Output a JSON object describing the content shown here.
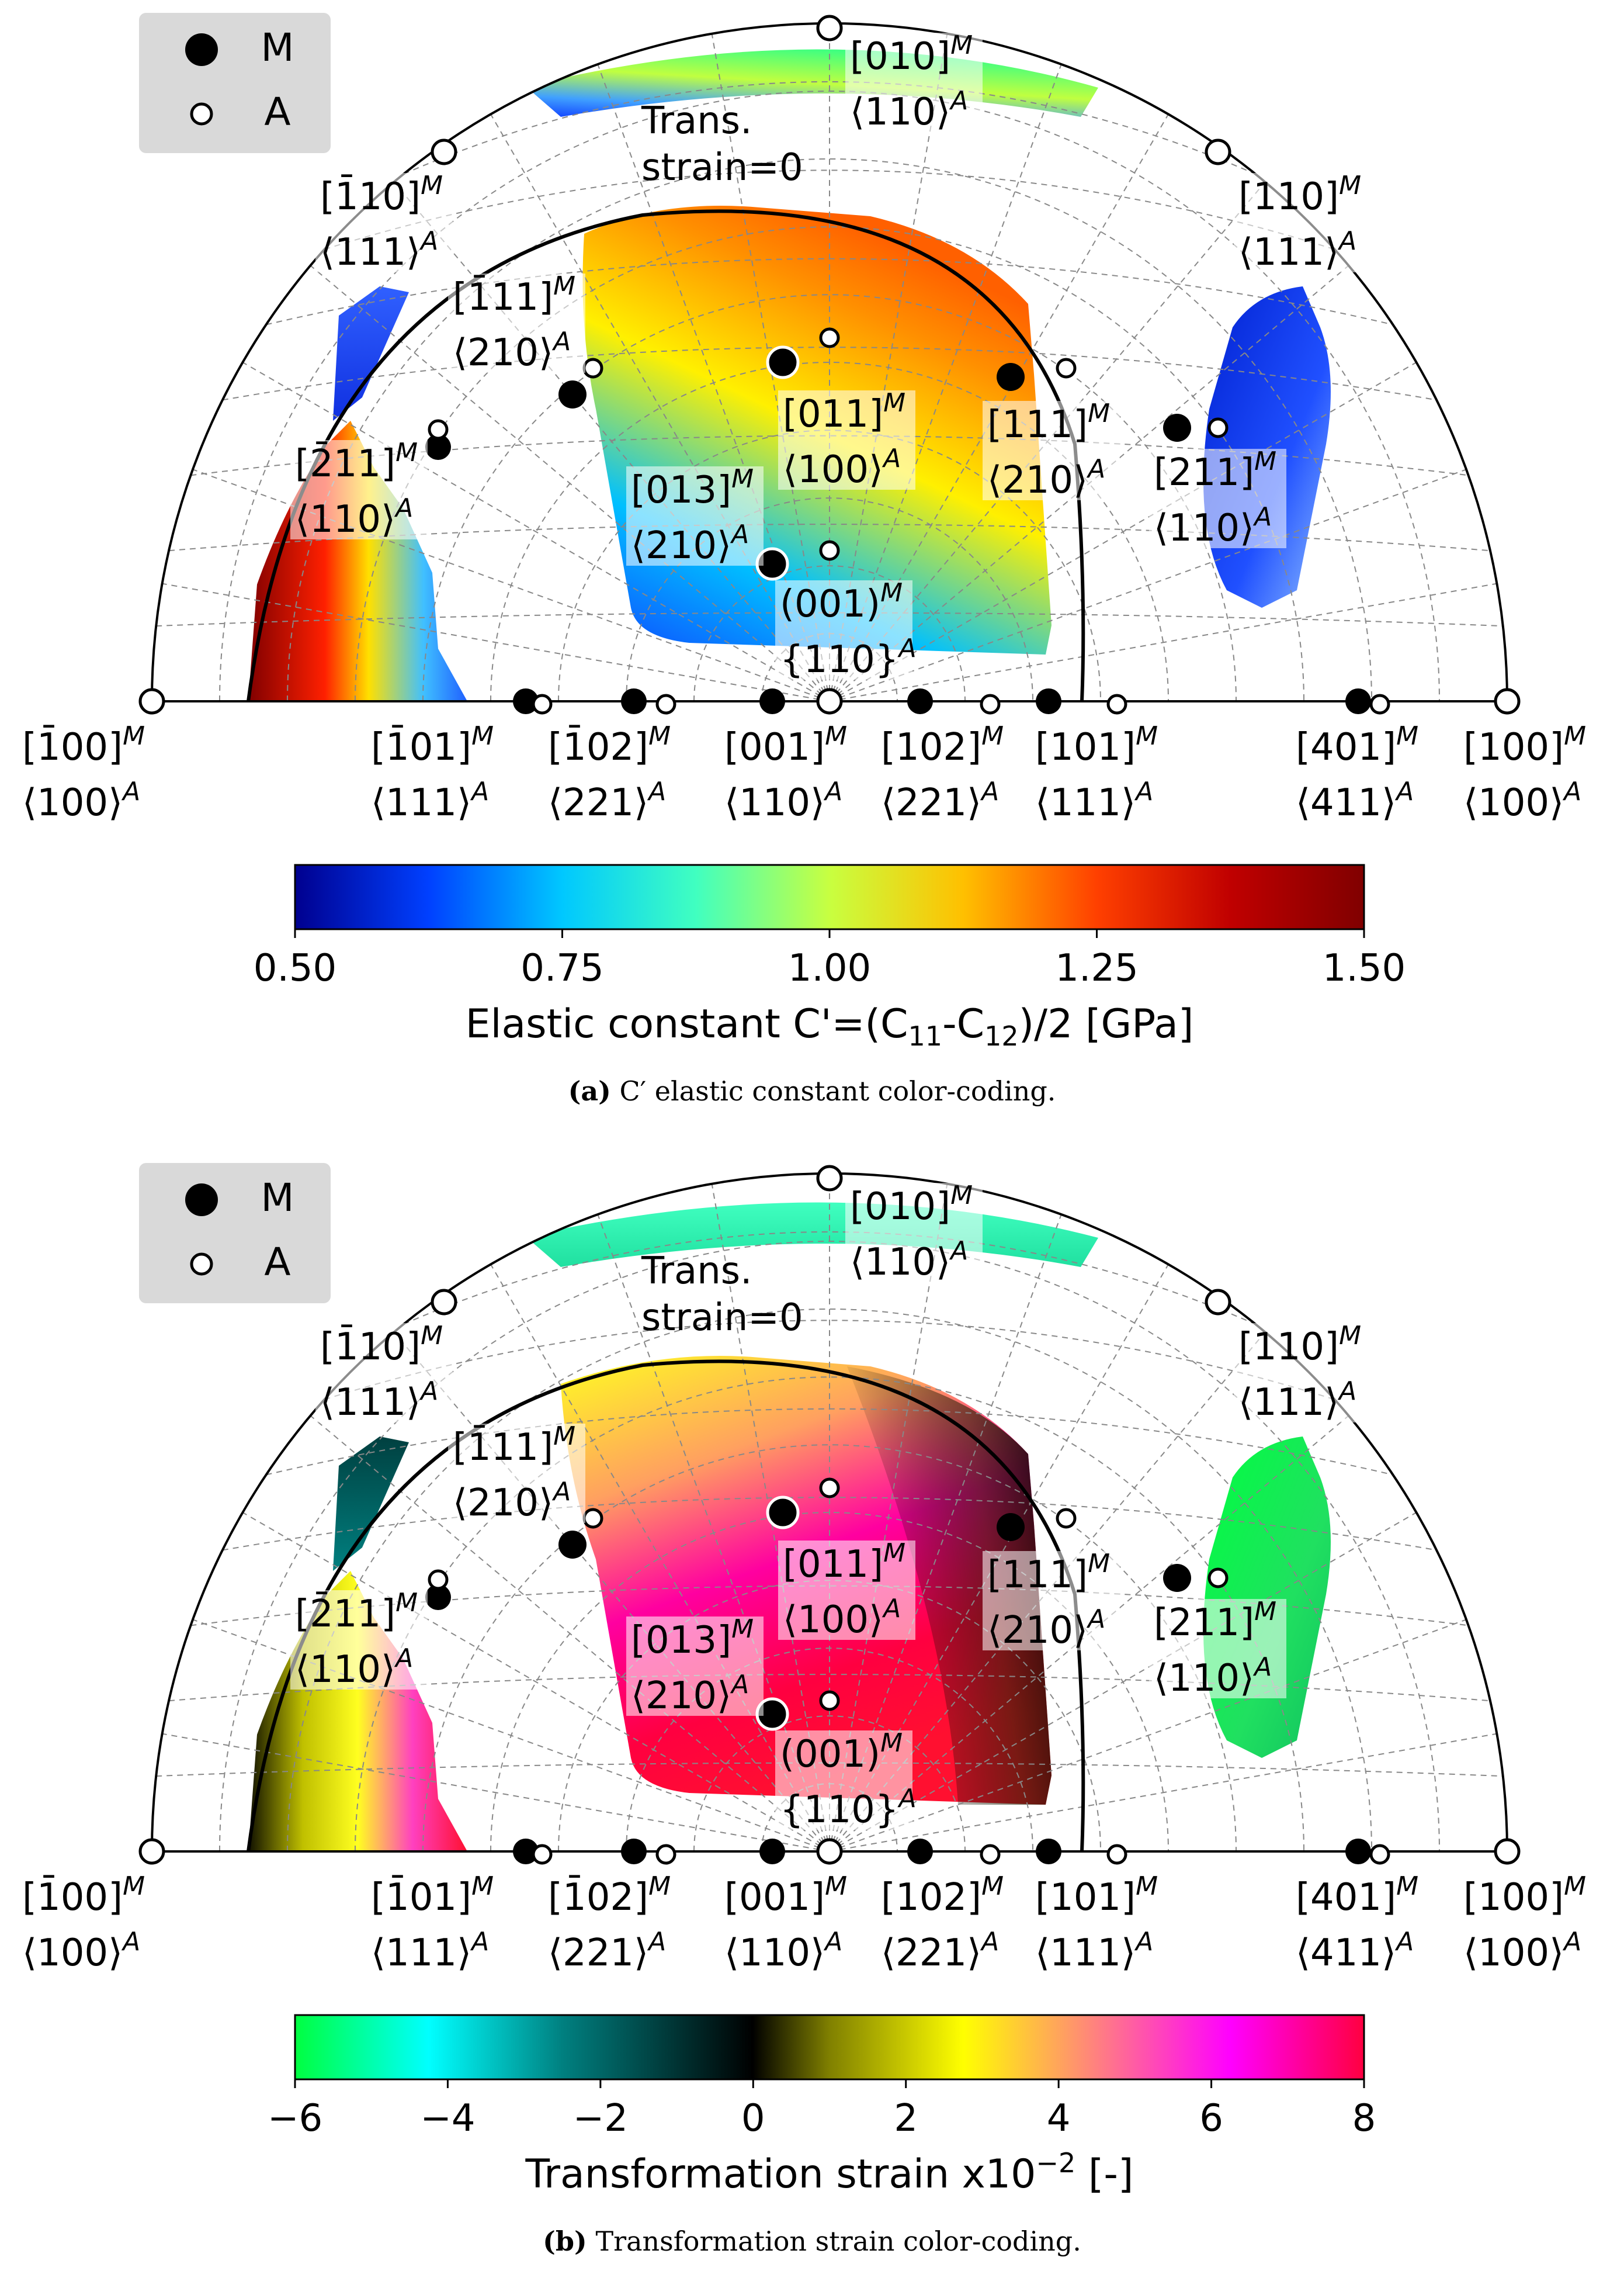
{
  "legend": {
    "martensite": "M",
    "austenite": "A"
  },
  "annotation": {
    "line1": "Trans.",
    "line2": "strain=0"
  },
  "labels": [
    {
      "id": "t010",
      "m": "[010]",
      "a": "⟨110⟩"
    },
    {
      "id": "m110",
      "m": "[1̄10]",
      "a": "⟨111⟩"
    },
    {
      "id": "p110",
      "m": "[110]",
      "a": "⟨111⟩"
    },
    {
      "id": "m111",
      "m": "[1̄11]",
      "a": "⟨210⟩"
    },
    {
      "id": "p011",
      "m": "[011]",
      "a": "⟨100⟩"
    },
    {
      "id": "p111",
      "m": "[111]",
      "a": "⟨210⟩"
    },
    {
      "id": "m211",
      "m": "[2̄11]",
      "a": "⟨110⟩"
    },
    {
      "id": "p013",
      "m": "[013]",
      "a": "⟨210⟩"
    },
    {
      "id": "p211",
      "m": "[211]",
      "a": "⟨110⟩"
    },
    {
      "id": "p001c",
      "m": "(001)",
      "a": "{110}"
    },
    {
      "id": "m100",
      "m": "[1̄00]",
      "a": "⟨100⟩"
    },
    {
      "id": "m101",
      "m": "[1̄01]",
      "a": "⟨111⟩"
    },
    {
      "id": "m102",
      "m": "[1̄02]",
      "a": "⟨221⟩"
    },
    {
      "id": "p001b",
      "m": "[001]",
      "a": "⟨110⟩"
    },
    {
      "id": "p102",
      "m": "[102]",
      "a": "⟨221⟩"
    },
    {
      "id": "p101",
      "m": "[101]",
      "a": "⟨111⟩"
    },
    {
      "id": "p401",
      "m": "[401]",
      "a": "⟨411⟩"
    },
    {
      "id": "p100",
      "m": "[100]",
      "a": "⟨100⟩"
    }
  ],
  "panels": [
    {
      "colorbar": {
        "label": "Elastic constant C'=(C11-C12)/2 [GPa]",
        "ticks": [
          "0.50",
          "0.75",
          "1.00",
          "1.25",
          "1.50"
        ],
        "colors": [
          "#00008f",
          "#0040ff",
          "#00c8ff",
          "#40ffc0",
          "#c8ff40",
          "#ffc000",
          "#ff4000",
          "#c00000",
          "#800000"
        ]
      },
      "caption": {
        "tag": "(a)",
        "text": "C′ elastic constant color-coding."
      },
      "regions": {
        "central": {
          "stops": [
            "#1040ff",
            "#00c0ff",
            "#fff000",
            "#ff9000",
            "#ff6000"
          ]
        },
        "left": {
          "stops": [
            "#800000",
            "#ff2000",
            "#ffe000",
            "#40c0ff",
            "#2060ff"
          ]
        },
        "leftupper": {
          "stops": [
            "#3060ff",
            "#1030e0"
          ]
        },
        "right": {
          "stops": [
            "#0020d0",
            "#2050ff",
            "#90c0ff"
          ]
        },
        "top": {
          "stops": [
            "#40ff80",
            "#c0ff40",
            "#40a0ff",
            "#1040ff"
          ]
        }
      }
    },
    {
      "colorbar": {
        "label": "Transformation strain x10^-2 [-]",
        "ticks": [
          "−6",
          "−4",
          "−2",
          "0",
          "2",
          "4",
          "6",
          "8"
        ],
        "colors": [
          "#00ff40",
          "#00ffff",
          "#008080",
          "#000000",
          "#808000",
          "#ffff00",
          "#ff8080",
          "#ff00ff",
          "#ff0040"
        ]
      },
      "caption": {
        "tag": "(b)",
        "text": "Transformation strain color-coding."
      },
      "regions": {
        "central": {
          "stops": [
            "#ffff20",
            "#ffa060",
            "#ff00a0",
            "#ff0040",
            "#ff1030"
          ]
        },
        "left": {
          "stops": [
            "#101000",
            "#c0c000",
            "#ffff20",
            "#ff40c0",
            "#ff1030"
          ]
        },
        "leftupper": {
          "stops": [
            "#004040",
            "#008080"
          ]
        },
        "right": {
          "stops": [
            "#00ff40",
            "#20e060",
            "#10c060"
          ]
        },
        "top": {
          "stops": [
            "#40ffc0",
            "#20e0a0"
          ]
        }
      }
    }
  ]
}
